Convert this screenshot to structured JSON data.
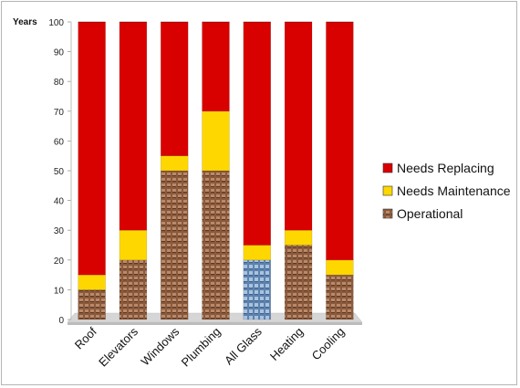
{
  "chart_data": {
    "type": "bar",
    "stacked": true,
    "ylabel": "Years",
    "ylim": [
      0,
      100
    ],
    "yticks": [
      0,
      10,
      20,
      30,
      40,
      50,
      60,
      70,
      80,
      90,
      100
    ],
    "categories": [
      "Roof",
      "Elevators",
      "Windows",
      "Plumbing",
      "All Glass",
      "Heating",
      "Cooling"
    ],
    "series": [
      {
        "name": "Operational",
        "color": "#8b5a3c",
        "values": [
          10,
          20,
          50,
          50,
          20,
          25,
          15
        ]
      },
      {
        "name": "Needs Maintenance",
        "color": "#ffd700",
        "values": [
          5,
          10,
          5,
          20,
          5,
          5,
          5
        ]
      },
      {
        "name": "Needs Replacing",
        "color": "#d90000",
        "values": [
          85,
          70,
          45,
          30,
          75,
          70,
          80
        ]
      }
    ],
    "legend": {
      "position": "right",
      "order": [
        "Needs Replacing",
        "Needs Maintenance",
        "Operational"
      ]
    },
    "grid": false
  }
}
